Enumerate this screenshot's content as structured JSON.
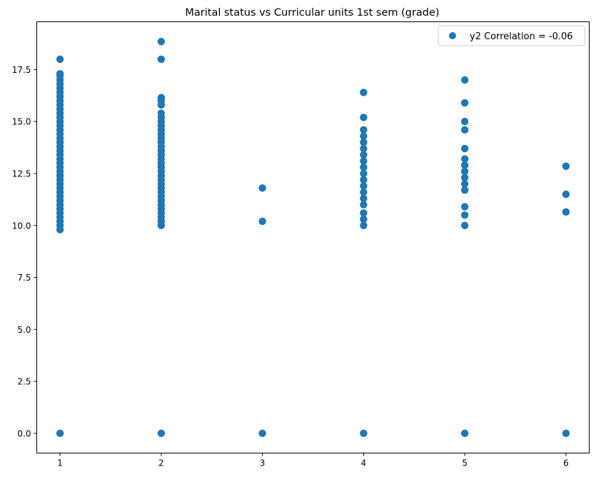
{
  "chart_data": {
    "type": "scatter",
    "title": "Marital status vs Curricular units 1st sem (grade)",
    "xlabel": "",
    "ylabel": "",
    "xlim": [
      0.77,
      6.23
    ],
    "ylim": [
      -0.95,
      19.8
    ],
    "x_ticks": [
      1,
      2,
      3,
      4,
      5,
      6
    ],
    "y_ticks": [
      0.0,
      2.5,
      5.0,
      7.5,
      10.0,
      12.5,
      15.0,
      17.5
    ],
    "x_tick_labels": [
      "1",
      "2",
      "3",
      "4",
      "5",
      "6"
    ],
    "y_tick_labels": [
      "0.0",
      "2.5",
      "5.0",
      "7.5",
      "10.0",
      "12.5",
      "15.0",
      "17.5"
    ],
    "grid": false,
    "legend_position": "top-right",
    "series": [
      {
        "name": "y2 Correlation = -0.06",
        "color": "#1f77b4",
        "points": [
          [
            1,
            0
          ],
          [
            1,
            9.8
          ],
          [
            1,
            10.0
          ],
          [
            1,
            10.2
          ],
          [
            1,
            10.4
          ],
          [
            1,
            10.6
          ],
          [
            1,
            10.8
          ],
          [
            1,
            11.0
          ],
          [
            1,
            11.2
          ],
          [
            1,
            11.4
          ],
          [
            1,
            11.6
          ],
          [
            1,
            11.8
          ],
          [
            1,
            12.0
          ],
          [
            1,
            12.2
          ],
          [
            1,
            12.4
          ],
          [
            1,
            12.6
          ],
          [
            1,
            12.8
          ],
          [
            1,
            13.0
          ],
          [
            1,
            13.2
          ],
          [
            1,
            13.4
          ],
          [
            1,
            13.6
          ],
          [
            1,
            13.8
          ],
          [
            1,
            14.0
          ],
          [
            1,
            14.2
          ],
          [
            1,
            14.4
          ],
          [
            1,
            14.6
          ],
          [
            1,
            14.8
          ],
          [
            1,
            15.0
          ],
          [
            1,
            15.2
          ],
          [
            1,
            15.4
          ],
          [
            1,
            15.6
          ],
          [
            1,
            15.8
          ],
          [
            1,
            16.0
          ],
          [
            1,
            16.2
          ],
          [
            1,
            16.4
          ],
          [
            1,
            16.6
          ],
          [
            1,
            16.8
          ],
          [
            1,
            17.0
          ],
          [
            1,
            17.2
          ],
          [
            1,
            17.3
          ],
          [
            1,
            18.0
          ],
          [
            2,
            0
          ],
          [
            2,
            10.0
          ],
          [
            2,
            10.2
          ],
          [
            2,
            10.4
          ],
          [
            2,
            10.6
          ],
          [
            2,
            10.8
          ],
          [
            2,
            11.0
          ],
          [
            2,
            11.2
          ],
          [
            2,
            11.4
          ],
          [
            2,
            11.6
          ],
          [
            2,
            11.8
          ],
          [
            2,
            12.0
          ],
          [
            2,
            12.2
          ],
          [
            2,
            12.4
          ],
          [
            2,
            12.6
          ],
          [
            2,
            12.8
          ],
          [
            2,
            13.0
          ],
          [
            2,
            13.2
          ],
          [
            2,
            13.4
          ],
          [
            2,
            13.6
          ],
          [
            2,
            13.8
          ],
          [
            2,
            14.0
          ],
          [
            2,
            14.2
          ],
          [
            2,
            14.4
          ],
          [
            2,
            14.6
          ],
          [
            2,
            14.8
          ],
          [
            2,
            15.0
          ],
          [
            2,
            15.2
          ],
          [
            2,
            15.4
          ],
          [
            2,
            15.8
          ],
          [
            2,
            16.0
          ],
          [
            2,
            16.15
          ],
          [
            2,
            18.0
          ],
          [
            2,
            18.85
          ],
          [
            3,
            0
          ],
          [
            3,
            10.2
          ],
          [
            3,
            11.8
          ],
          [
            4,
            0
          ],
          [
            4,
            10.0
          ],
          [
            4,
            10.3
          ],
          [
            4,
            10.6
          ],
          [
            4,
            11.0
          ],
          [
            4,
            11.3
          ],
          [
            4,
            11.6
          ],
          [
            4,
            11.9
          ],
          [
            4,
            12.2
          ],
          [
            4,
            12.5
          ],
          [
            4,
            12.8
          ],
          [
            4,
            13.1
          ],
          [
            4,
            13.4
          ],
          [
            4,
            13.7
          ],
          [
            4,
            14.0
          ],
          [
            4,
            14.3
          ],
          [
            4,
            14.6
          ],
          [
            4,
            15.2
          ],
          [
            4,
            16.4
          ],
          [
            5,
            0
          ],
          [
            5,
            10.0
          ],
          [
            5,
            10.5
          ],
          [
            5,
            10.9
          ],
          [
            5,
            11.7
          ],
          [
            5,
            12.0
          ],
          [
            5,
            12.3
          ],
          [
            5,
            12.6
          ],
          [
            5,
            12.9
          ],
          [
            5,
            13.2
          ],
          [
            5,
            13.7
          ],
          [
            5,
            14.6
          ],
          [
            5,
            15.0
          ],
          [
            5,
            15.9
          ],
          [
            5,
            17.0
          ],
          [
            6,
            0
          ],
          [
            6,
            10.65
          ],
          [
            6,
            11.5
          ],
          [
            6,
            12.85
          ]
        ]
      }
    ]
  }
}
